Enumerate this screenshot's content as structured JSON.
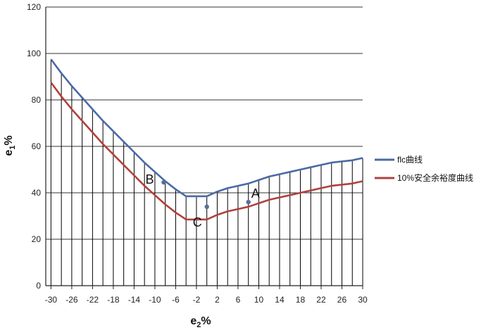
{
  "chart_data": {
    "type": "line",
    "title": "",
    "xlabel_main": "e",
    "xlabel_sub": "2",
    "xlabel_suffix": "%",
    "ylabel_main": "e",
    "ylabel_sub": "1",
    "ylabel_suffix": "%",
    "xlim": [
      -31,
      30
    ],
    "ylim": [
      0,
      120
    ],
    "x_ticks": [
      -30,
      -26,
      -22,
      -18,
      -14,
      -10,
      -6,
      -2,
      2,
      6,
      10,
      14,
      18,
      22,
      26,
      30
    ],
    "y_ticks": [
      0,
      20,
      40,
      60,
      80,
      100,
      120
    ],
    "grid": "horizontal",
    "vertical_lines_x": [
      -30,
      -28,
      -26,
      -24,
      -22,
      -20,
      -18,
      -16,
      -14,
      -12,
      -10,
      -8,
      -6,
      -4,
      -2,
      0,
      2,
      4,
      6,
      8,
      10,
      12,
      14,
      16,
      18,
      20,
      22,
      24,
      26,
      28,
      30
    ],
    "legend_position": "right",
    "series": [
      {
        "name": "flc曲线",
        "color": "#4a6aa5",
        "x": [
          -30,
          -28,
          -26,
          -24,
          -22,
          -20,
          -18,
          -16,
          -14,
          -12,
          -10,
          -8,
          -6,
          -4,
          -2,
          0,
          2,
          4,
          6,
          8,
          10,
          12,
          14,
          16,
          18,
          20,
          22,
          24,
          26,
          28,
          30
        ],
        "values": [
          97.5,
          91.5,
          86,
          81,
          76,
          71,
          66.5,
          62,
          57.5,
          53,
          49,
          45,
          41.5,
          38.5,
          38.5,
          38.5,
          40.5,
          42,
          43,
          44,
          45.5,
          47,
          48,
          49,
          50,
          51,
          52,
          53,
          53.5,
          54,
          55
        ]
      },
      {
        "name": "10%安全余裕度曲线",
        "color": "#b0413e",
        "x": [
          -30,
          -28,
          -26,
          -24,
          -22,
          -20,
          -18,
          -16,
          -14,
          -12,
          -10,
          -8,
          -6,
          -4,
          -2,
          0,
          2,
          4,
          6,
          8,
          10,
          12,
          14,
          16,
          18,
          20,
          22,
          24,
          26,
          28,
          30
        ],
        "values": [
          87.5,
          81.5,
          76,
          71,
          66,
          61,
          56.5,
          52,
          47.5,
          43,
          39,
          35,
          31.5,
          28.5,
          28.5,
          28.5,
          30.5,
          32,
          33,
          34,
          35.5,
          37,
          38,
          39,
          40,
          41,
          42,
          43,
          43.5,
          44,
          45
        ]
      }
    ],
    "points": [
      {
        "label": "B",
        "x": -8.3,
        "y": 44.5
      },
      {
        "label": "C",
        "x": 0.0,
        "y": 34.0
      },
      {
        "label": "A",
        "x": 8.0,
        "y": 36.0
      }
    ],
    "point_color": "#5a6d9a"
  }
}
